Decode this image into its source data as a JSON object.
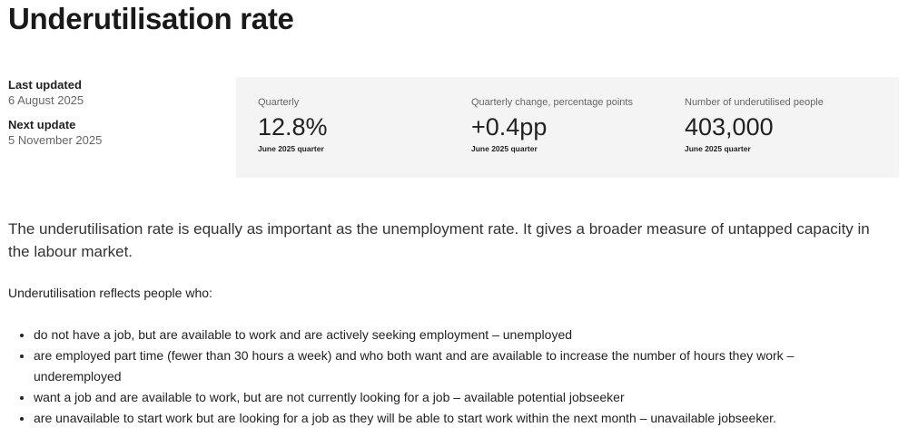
{
  "title": "Underutilisation rate",
  "meta": {
    "last_updated_label": "Last updated",
    "last_updated": "6 August 2025",
    "next_update_label": "Next update",
    "next_update": "5 November 2025"
  },
  "stats": [
    {
      "title": "Quarterly",
      "value": "12.8%",
      "sub": "June 2025 quarter"
    },
    {
      "title": "Quarterly change, percentage points",
      "value": "+0.4pp",
      "sub": "June 2025 quarter"
    },
    {
      "title": "Number of underutilised people",
      "value": "403,000",
      "sub": "June 2025 quarter"
    }
  ],
  "intro": "The underutilisation rate is equally as important as the unemployment rate. It gives a broader measure of untapped capacity in the labour market.",
  "list_intro": "Underutilisation reflects people who:",
  "list": [
    "do not have a job, but are available to work and are actively seeking employment – unemployed",
    "are employed part time (fewer than 30 hours a week) and who both want and are available to increase the number of hours they work – underemployed",
    "want a job and are available to work, but are not currently looking for a job – available potential jobseeker",
    "are unavailable to start work but are looking for a job as they will be able to start work within the next month – unavailable jobseeker."
  ]
}
